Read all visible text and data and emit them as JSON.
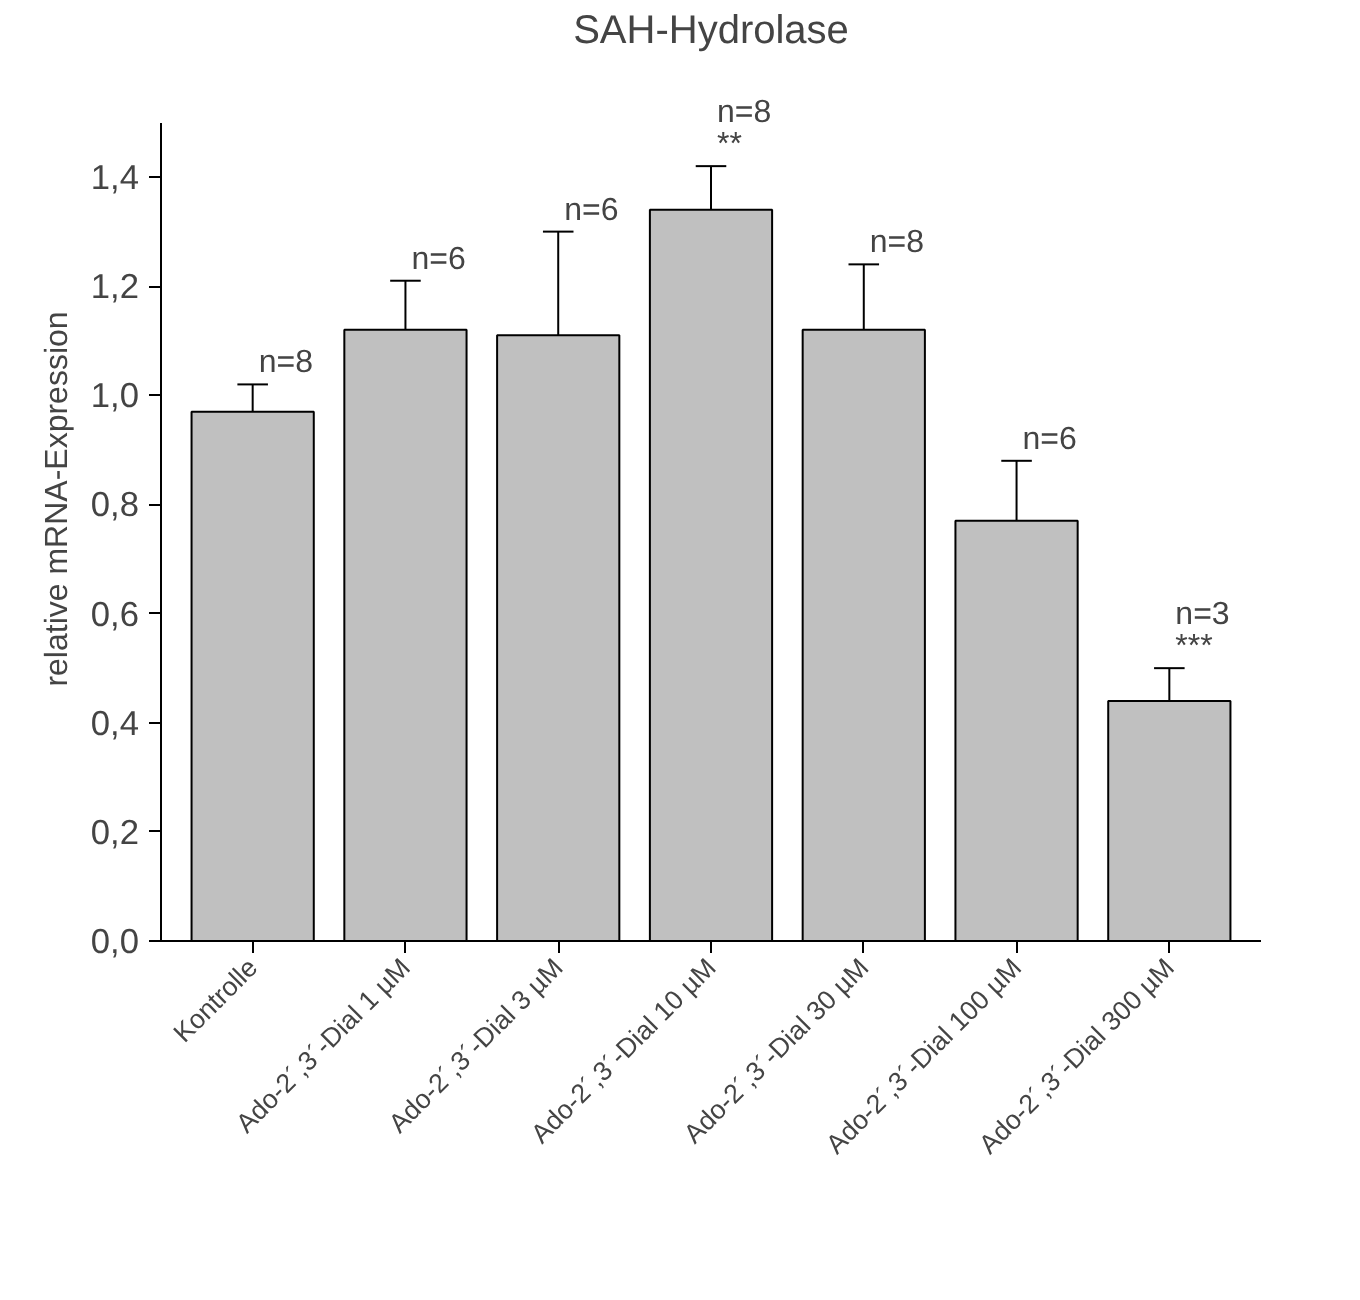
{
  "chart_data": {
    "type": "bar",
    "title": "SAH-Hydrolase",
    "ylabel": "relative mRNA-Expression",
    "categories": [
      "Kontrolle",
      "Ado-2´,3´-Dial 1 µM",
      "Ado-2´,3´-Dial 3 µM",
      "Ado-2´,3´-Dial 10 µM",
      "Ado-2´,3´-Dial 30 µM",
      "Ado-2´,3´-Dial 100 µM",
      "Ado-2´,3´-Dial 300 µM"
    ],
    "values": [
      0.97,
      1.12,
      1.11,
      1.34,
      1.12,
      0.77,
      0.44
    ],
    "errors": [
      [
        0.97,
        1.02
      ],
      [
        1.12,
        1.21
      ],
      [
        1.11,
        1.3
      ],
      [
        1.34,
        1.42
      ],
      [
        1.12,
        1.24
      ],
      [
        0.77,
        0.88
      ],
      [
        0.44,
        0.5
      ]
    ],
    "color": "#c0c0c0",
    "ylim": [
      0,
      1.5
    ],
    "yticks": [
      {
        "value": 0,
        "label": "0,0"
      },
      {
        "value": 0.2,
        "label": "0,2"
      },
      {
        "value": 0.4,
        "label": "0,4"
      },
      {
        "value": 0.6,
        "label": "0,6"
      },
      {
        "value": 0.8,
        "label": "0,8"
      },
      {
        "value": 1.0,
        "label": "1,0"
      },
      {
        "value": 1.2,
        "label": "1,2"
      },
      {
        "value": 1.4,
        "label": "1,4"
      }
    ],
    "grid": false,
    "annotations": [
      {
        "text": "n=8",
        "x": "Kontrolle",
        "y": 1.02
      },
      {
        "text": "n=6",
        "x": "Ado-2´,3´-Dial 1 µM",
        "y": 1.21
      },
      {
        "text": "n=6",
        "x": "Ado-2´,3´-Dial 3 µM",
        "y": 1.3
      },
      {
        "text": "n=8",
        "x": "Ado-2´,3´-Dial 10 µM",
        "y": 1.42
      },
      {
        "text": "**",
        "x": "Ado-2´,3´-Dial 10 µM",
        "y": 1.42
      },
      {
        "text": "n=8",
        "x": "Ado-2´,3´-Dial 30 µM",
        "y": 1.24
      },
      {
        "text": "n=6",
        "x": "Ado-2´,3´-Dial 100 µM",
        "y": 0.88
      },
      {
        "text": "n=3",
        "x": "Ado-2´,3´-Dial 300 µM",
        "y": 0.5
      },
      {
        "text": "***",
        "x": "Ado-2´,3´-Dial 300 µM",
        "y": 0.5
      }
    ]
  }
}
